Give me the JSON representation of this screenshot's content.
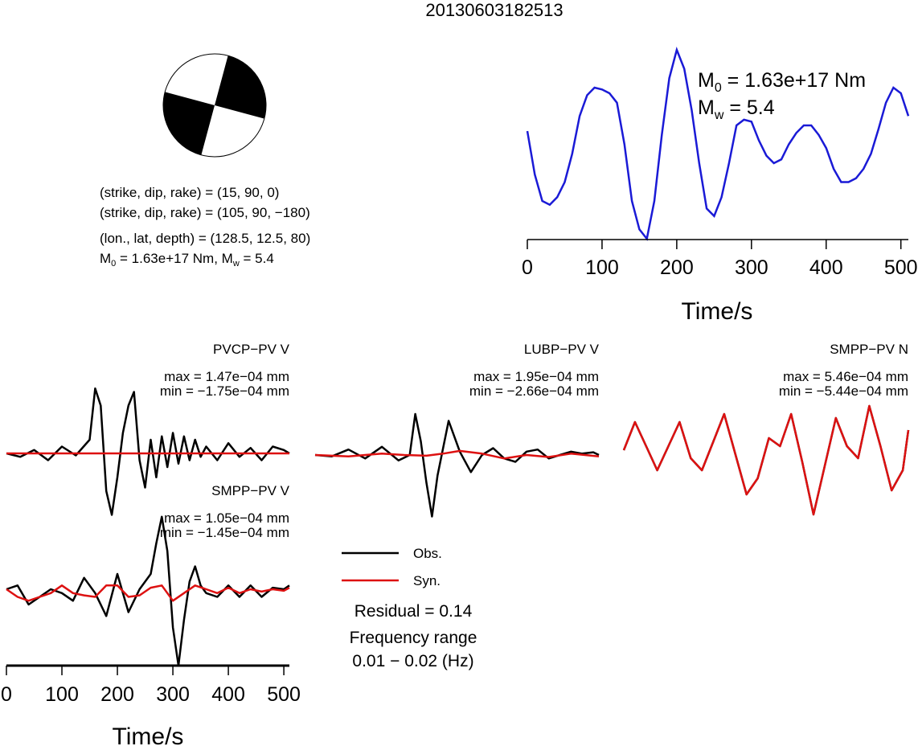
{
  "title": "20130603182513",
  "colors": {
    "observed": "#000000",
    "synthetic": "#dd1111",
    "stf": "#1a1ad6"
  },
  "focal": {
    "lines": [
      "(strike, dip, rake) = (15, 90, 0)",
      "(strike, dip, rake) = (105, 90, −180)",
      "(lon., lat, depth) = (128.5, 12.5, 80)"
    ],
    "m0_text": "M",
    "m0_sub": "0",
    "m0_rest": " = 1.63e+17 Nm, M",
    "mw_sub": "w",
    "mw_rest": " = 5.4"
  },
  "stf_panel": {
    "m0_label": "M",
    "m0_sub": "0",
    "m0_value": " = 1.63e+17 Nm",
    "mw_label": "M",
    "mw_sub": "w",
    "mw_value": " = 5.4",
    "xlabel": "Time/s",
    "xticks": [
      "0",
      "100",
      "200",
      "300",
      "400",
      "500"
    ]
  },
  "waveforms": [
    {
      "station": "PVCP−PV V",
      "max": "max = 1.47e−04 mm",
      "min": "min = −1.75e−04 mm"
    },
    {
      "station": "LUBP−PV V",
      "max": "max = 1.95e−04 mm",
      "min": "min = −2.66e−04 mm"
    },
    {
      "station": "SMPP−PV N",
      "max": "max = 5.46e−04 mm",
      "min": "min = −5.44e−04 mm"
    },
    {
      "station": "SMPP−PV V",
      "max": "max = 1.05e−04 mm",
      "min": "min = −1.45e−04 mm"
    }
  ],
  "wave_axis": {
    "xlabel": "Time/s",
    "xticks": [
      "0",
      "100",
      "200",
      "300",
      "400",
      "500"
    ]
  },
  "legend": {
    "obs": "Obs.",
    "syn": "Syn.",
    "residual": "Residual = 0.14",
    "freq_label": "Frequency range",
    "freq_value": "0.01 − 0.02 (Hz)"
  },
  "chart_data": [
    {
      "type": "line",
      "title": "",
      "xlabel": "Time/s",
      "ylabel": "",
      "xlim": [
        0,
        510
      ],
      "series": [
        {
          "x": [
            0,
            10,
            20,
            30,
            40,
            50,
            60,
            70,
            80,
            90,
            100,
            110,
            120,
            130,
            140,
            150,
            160,
            170,
            180,
            190,
            200,
            210,
            220,
            230,
            240,
            250,
            260,
            270,
            280,
            290,
            300,
            310,
            320,
            330,
            340,
            350,
            360,
            370,
            380,
            390,
            400,
            410,
            420,
            430,
            440,
            450,
            460,
            470,
            480,
            490,
            500,
            510
          ],
          "values": [
            0.57,
            0.34,
            0.2,
            0.18,
            0.22,
            0.3,
            0.45,
            0.65,
            0.76,
            0.8,
            0.79,
            0.77,
            0.72,
            0.5,
            0.2,
            0.05,
            0.0,
            0.2,
            0.55,
            0.85,
            1.0,
            0.9,
            0.68,
            0.4,
            0.16,
            0.12,
            0.22,
            0.4,
            0.6,
            0.63,
            0.62,
            0.52,
            0.44,
            0.4,
            0.42,
            0.5,
            0.56,
            0.6,
            0.6,
            0.55,
            0.48,
            0.37,
            0.3,
            0.3,
            0.32,
            0.37,
            0.45,
            0.58,
            0.72,
            0.8,
            0.77,
            0.65
          ]
        }
      ]
    },
    {
      "type": "line",
      "xlim": [
        0,
        510
      ],
      "series": [
        {
          "name": "Obs.",
          "x": [
            0,
            25,
            50,
            75,
            100,
            125,
            150,
            160,
            170,
            180,
            190,
            200,
            210,
            220,
            230,
            240,
            250,
            260,
            270,
            280,
            290,
            300,
            310,
            320,
            330,
            340,
            350,
            360,
            380,
            400,
            420,
            440,
            460,
            480,
            500,
            510
          ],
          "values": [
            0.0,
            -0.05,
            0.05,
            -0.1,
            0.1,
            -0.03,
            0.2,
            0.95,
            0.7,
            -0.55,
            -0.9,
            -0.35,
            0.3,
            0.7,
            0.9,
            -0.1,
            -0.5,
            0.2,
            -0.35,
            0.25,
            -0.2,
            0.3,
            -0.15,
            0.25,
            -0.1,
            0.2,
            -0.05,
            0.1,
            -0.1,
            0.15,
            -0.05,
            0.08,
            -0.1,
            0.1,
            0.05,
            0.0
          ]
        },
        {
          "name": "Syn.",
          "x": [
            0,
            100,
            200,
            300,
            400,
            510
          ],
          "values": [
            0.0,
            0.0,
            0.0,
            0.0,
            0.0,
            0.0
          ]
        }
      ]
    },
    {
      "type": "line",
      "xlim": [
        0,
        510
      ],
      "series": [
        {
          "name": "Obs.",
          "x": [
            0,
            30,
            60,
            90,
            120,
            150,
            170,
            180,
            190,
            200,
            210,
            220,
            240,
            260,
            280,
            300,
            320,
            340,
            360,
            380,
            400,
            420,
            440,
            460,
            480,
            500,
            510
          ],
          "values": [
            0.0,
            -0.02,
            0.08,
            -0.05,
            0.12,
            -0.08,
            0.0,
            0.6,
            0.2,
            -0.4,
            -0.9,
            -0.3,
            0.5,
            0.05,
            -0.25,
            0.0,
            0.1,
            -0.05,
            -0.1,
            0.05,
            0.08,
            -0.05,
            0.0,
            0.05,
            0.02,
            0.04,
            0.0
          ]
        },
        {
          "name": "Syn.",
          "x": [
            0,
            60,
            120,
            160,
            200,
            230,
            260,
            300,
            340,
            380,
            420,
            460,
            510
          ],
          "values": [
            0.0,
            -0.02,
            0.02,
            0.0,
            -0.01,
            0.02,
            0.06,
            0.02,
            -0.05,
            0.0,
            -0.03,
            0.02,
            -0.02
          ]
        }
      ]
    },
    {
      "type": "line",
      "xlim": [
        0,
        510
      ],
      "series": [
        {
          "name": "Obs.",
          "x": [
            0,
            20,
            40,
            60,
            80,
            100,
            120,
            140,
            160,
            180,
            200,
            220,
            240,
            260,
            280,
            300,
            320,
            340,
            360,
            380,
            400,
            420,
            440,
            460,
            480,
            500,
            510
          ],
          "values": [
            -0.05,
            0.3,
            0.0,
            -0.3,
            0.0,
            0.3,
            -0.15,
            -0.3,
            0.05,
            0.4,
            -0.1,
            -0.6,
            -0.4,
            0.1,
            0.0,
            0.4,
            -0.2,
            -0.85,
            -0.25,
            0.35,
            0.0,
            -0.15,
            0.5,
            0.0,
            -0.55,
            -0.3,
            0.2
          ]
        },
        {
          "name": "Syn.",
          "x": [
            0,
            20,
            40,
            60,
            80,
            100,
            120,
            140,
            160,
            180,
            200,
            220,
            240,
            260,
            280,
            300,
            320,
            340,
            360,
            380,
            400,
            420,
            440,
            460,
            480,
            500,
            510
          ],
          "values": [
            -0.05,
            0.3,
            0.0,
            -0.3,
            0.0,
            0.3,
            -0.15,
            -0.3,
            0.05,
            0.4,
            -0.1,
            -0.6,
            -0.4,
            0.1,
            0.0,
            0.4,
            -0.2,
            -0.85,
            -0.25,
            0.35,
            0.0,
            -0.15,
            0.5,
            0.0,
            -0.55,
            -0.3,
            0.2
          ]
        }
      ]
    },
    {
      "type": "line",
      "xlim": [
        0,
        510
      ],
      "series": [
        {
          "name": "Obs.",
          "x": [
            0,
            20,
            40,
            60,
            80,
            100,
            120,
            140,
            160,
            180,
            200,
            220,
            240,
            260,
            270,
            280,
            290,
            300,
            310,
            320,
            330,
            340,
            350,
            360,
            380,
            400,
            420,
            440,
            460,
            480,
            500,
            510
          ],
          "values": [
            0.0,
            0.05,
            -0.2,
            -0.1,
            0.0,
            -0.05,
            -0.15,
            0.15,
            -0.05,
            -0.35,
            0.2,
            -0.3,
            0.0,
            0.2,
            0.6,
            0.95,
            0.5,
            -0.5,
            -1.0,
            -0.4,
            0.1,
            0.3,
            0.05,
            -0.05,
            -0.1,
            0.05,
            -0.1,
            0.05,
            -0.1,
            0.02,
            0.0,
            0.05
          ]
        },
        {
          "name": "Syn.",
          "x": [
            0,
            20,
            40,
            60,
            80,
            100,
            120,
            140,
            160,
            180,
            200,
            220,
            240,
            260,
            280,
            300,
            320,
            340,
            360,
            380,
            400,
            420,
            440,
            460,
            480,
            500,
            510
          ],
          "values": [
            0.0,
            -0.1,
            -0.15,
            -0.1,
            -0.05,
            0.05,
            -0.05,
            -0.08,
            -0.1,
            0.05,
            0.05,
            -0.1,
            -0.08,
            0.02,
            0.05,
            -0.15,
            -0.05,
            0.05,
            0.0,
            -0.05,
            0.02,
            -0.05,
            0.0,
            -0.03,
            0.0,
            -0.02,
            0.02
          ]
        }
      ]
    }
  ]
}
